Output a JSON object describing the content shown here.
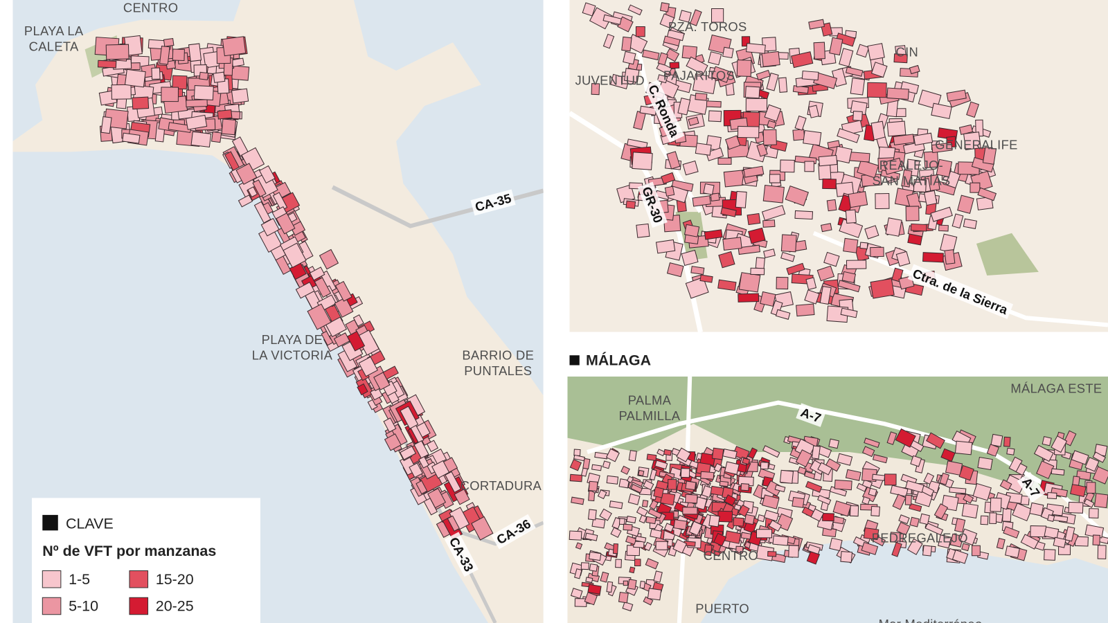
{
  "cadiz": {
    "places": [
      [
        "CENTRO"
      ],
      [
        "PLAYA LA",
        "CALETA"
      ],
      [
        "PLAYA DE",
        "LA VICTORIA"
      ],
      [
        "BARRIO DE",
        "PUNTALES"
      ],
      [
        "CORTADURA"
      ]
    ],
    "roads": [
      "CA-35",
      "CA-36",
      "CA-33"
    ]
  },
  "legend": {
    "title": "CLAVE",
    "subtitle": "Nº de VFT por manzanas",
    "items": [
      {
        "label": "1-5",
        "color": "#f7c6cd"
      },
      {
        "label": "5-10",
        "color": "#eb96a2"
      },
      {
        "label": "15-20",
        "color": "#e2505f"
      },
      {
        "label": "20-25",
        "color": "#d41b32"
      }
    ]
  },
  "granada": {
    "places": [
      [
        "PZA. TOROS"
      ],
      [
        "JUVENTUD"
      ],
      [
        "PAJARITOS"
      ],
      [
        "GENERALIFE"
      ],
      [
        "REALEJO-",
        "SAN MATÍAS"
      ],
      [
        "CIN"
      ]
    ],
    "roads": [
      "C. Ronda",
      "GR-30",
      "Ctra. de la Sierra"
    ]
  },
  "malaga": {
    "title": "MÁLAGA",
    "places": [
      [
        "PALMA",
        "PALMILLA"
      ],
      [
        "MÁLAGA ESTE"
      ],
      [
        "CENTRO"
      ],
      [
        "PEDREGALEJO"
      ],
      [
        "PUERTO"
      ],
      [
        "Mar Mediterráneo"
      ]
    ],
    "roads": [
      "A-7",
      "A-7"
    ]
  }
}
